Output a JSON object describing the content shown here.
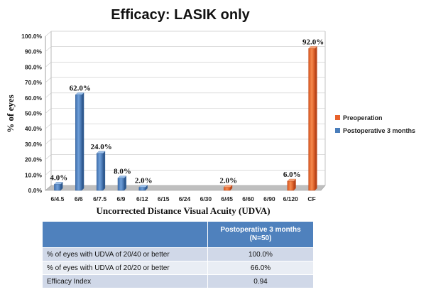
{
  "chart_data": {
    "type": "bar",
    "title": "Efficacy: LASIK only",
    "xlabel": "Uncorrected Distance Visual Acuity (UDVA)",
    "ylabel": "% of eyes",
    "ylim": [
      0,
      100
    ],
    "yticks": [
      "0.0%",
      "10.0%",
      "20.0%",
      "30.0%",
      "40.0%",
      "50.0%",
      "60.0%",
      "70.0%",
      "80.0%",
      "90.0%",
      "100.0%"
    ],
    "categories": [
      "6/4.5",
      "6/6",
      "6/7.5",
      "6/9",
      "6/12",
      "6/15",
      "6/24",
      "6/30",
      "6/45",
      "6/60",
      "6/90",
      "6/120",
      "CF"
    ],
    "series": [
      {
        "name": "Preoperation",
        "color": "#e8622b",
        "values": [
          0,
          0,
          0,
          0,
          0,
          0,
          0,
          0,
          2,
          0,
          0,
          6,
          92
        ],
        "labels": [
          "",
          "",
          "",
          "",
          "",
          "",
          "",
          "",
          "2.0%",
          "",
          "",
          "6.0%",
          "92.0%"
        ]
      },
      {
        "name": "Postoperative 3 months",
        "color": "#4a7ebb",
        "values": [
          4,
          62,
          24,
          8,
          2,
          0,
          0,
          0,
          0,
          0,
          0,
          0,
          0
        ],
        "labels": [
          "4.0%",
          "62.0%",
          "24.0%",
          "8.0%",
          "2.0%",
          "",
          "",
          "",
          "",
          "",
          "",
          "",
          ""
        ]
      }
    ],
    "legend": "right"
  },
  "table": {
    "header": "Postoperative 3 months (N=50)",
    "header_line1": "Postoperative 3 months",
    "header_line2": "(N=50)",
    "rows": [
      {
        "label": "% of eyes with UDVA of 20/40 or better",
        "value": "100.0%"
      },
      {
        "label": "% of eyes with UDVA of 20/20 or better",
        "value": "66.0%"
      },
      {
        "label": "Efficacy Index",
        "value": "0.94"
      }
    ]
  }
}
